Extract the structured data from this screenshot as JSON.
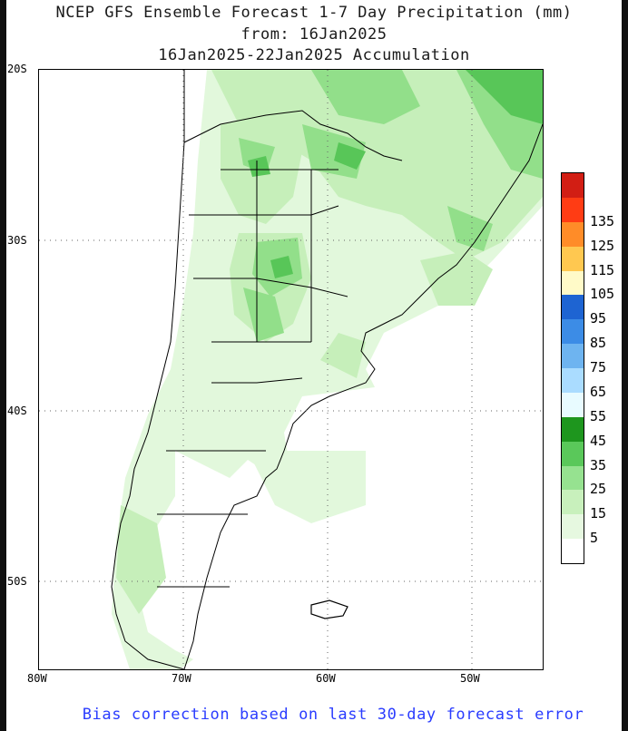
{
  "title": {
    "line1": "NCEP GFS Ensemble Forecast 1-7 Day Precipitation (mm)",
    "line2": "from: 16Jan2025",
    "line3": "16Jan2025-22Jan2025 Accumulation"
  },
  "footer": "Bias correction based on last 30-day forecast error",
  "map": {
    "lat_labels": [
      "20S",
      "30S",
      "40S",
      "50S"
    ],
    "lon_labels": [
      "80W",
      "70W",
      "60W",
      "50W"
    ],
    "grid_style": "dotted"
  },
  "colorbar": {
    "levels": [
      "5",
      "15",
      "25",
      "35",
      "45",
      "55",
      "65",
      "75",
      "85",
      "95",
      "105",
      "115",
      "125",
      "135"
    ],
    "colors": [
      "#ffffff",
      "#e6f8e0",
      "#c8f0bc",
      "#96e290",
      "#5ac85a",
      "#1e961e",
      "#e8fbff",
      "#aadcff",
      "#6eb4f0",
      "#3c8ce6",
      "#1e64d2",
      "#fffac8",
      "#ffc850",
      "#ff8c28",
      "#ff3c14",
      "#d21e14"
    ]
  }
}
